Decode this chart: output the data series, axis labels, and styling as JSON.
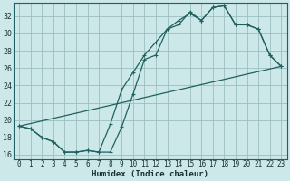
{
  "xlabel": "Humidex (Indice chaleur)",
  "bg_color": "#cde8e8",
  "grid_color": "#9bbfbf",
  "line_color": "#206060",
  "xlim": [
    -0.5,
    23.5
  ],
  "ylim": [
    15.5,
    33.5
  ],
  "xticks": [
    0,
    1,
    2,
    3,
    4,
    5,
    6,
    7,
    8,
    9,
    10,
    11,
    12,
    13,
    14,
    15,
    16,
    17,
    18,
    19,
    20,
    21,
    22,
    23
  ],
  "yticks": [
    16,
    18,
    20,
    22,
    24,
    26,
    28,
    30,
    32
  ],
  "curve1_x": [
    0,
    1,
    2,
    3,
    4,
    5,
    6,
    7,
    8,
    9,
    10,
    11,
    12,
    13,
    14,
    15,
    16,
    17,
    18,
    19,
    20,
    21,
    22,
    23
  ],
  "curve1_y": [
    19.3,
    19.0,
    18.0,
    17.5,
    16.3,
    16.3,
    16.5,
    16.3,
    19.5,
    23.5,
    25.5,
    27.5,
    29.0,
    30.5,
    31.0,
    32.5,
    31.5,
    33.0,
    33.2,
    31.0,
    31.0,
    30.5,
    27.5,
    26.2
  ],
  "curve2_x": [
    0,
    1,
    2,
    3,
    4,
    5,
    6,
    7,
    8,
    9,
    10,
    11,
    12,
    13,
    14,
    15,
    16,
    17,
    18,
    19,
    20,
    21,
    22,
    23
  ],
  "curve2_y": [
    19.3,
    19.0,
    18.0,
    17.5,
    16.3,
    16.3,
    16.5,
    16.3,
    16.3,
    19.2,
    23.0,
    27.0,
    27.5,
    30.5,
    31.5,
    32.3,
    31.5,
    33.0,
    33.2,
    31.0,
    31.0,
    30.5,
    27.5,
    26.2
  ],
  "line_x": [
    0,
    23
  ],
  "line_y": [
    19.3,
    26.2
  ]
}
